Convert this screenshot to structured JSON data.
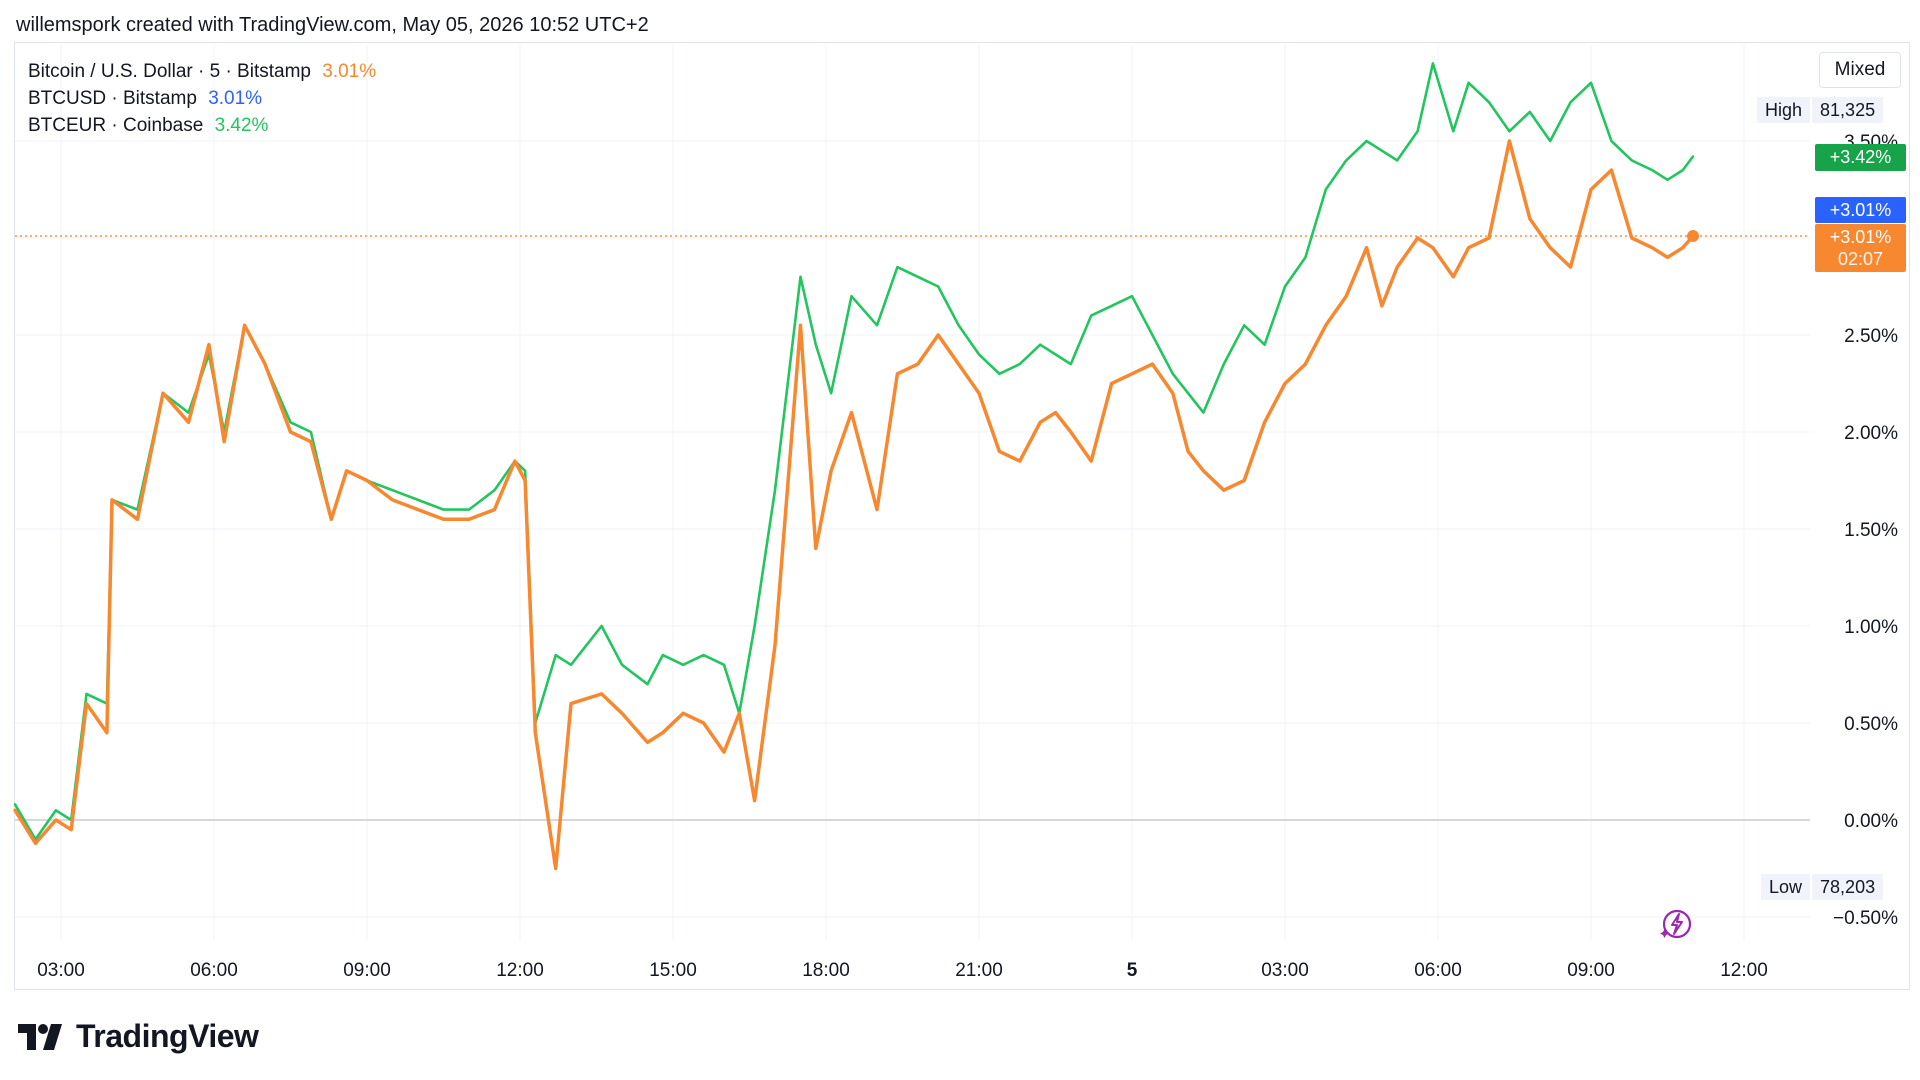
{
  "header": {
    "text": "willemspork created with TradingView.com, May 05, 2026 10:52 UTC+2"
  },
  "legend": [
    {
      "label": "Bitcoin / U.S. Dollar · 5 · Bitstamp",
      "value": "3.01%",
      "color": "#f7882f"
    },
    {
      "label": "BTCUSD · Bitstamp",
      "value": "3.01%",
      "color": "#2962ff"
    },
    {
      "label": "BTCEUR · Coinbase",
      "value": "3.42%",
      "color": "#22c55e"
    }
  ],
  "controls": {
    "mode_button": "Mixed"
  },
  "stats": {
    "high_label": "High",
    "high_value": "81,325",
    "low_label": "Low",
    "low_value": "78,203"
  },
  "badges": {
    "btceur": "+3.42%",
    "btcusd": "+3.01%",
    "main": "+3.01%",
    "countdown": "02:07"
  },
  "colors": {
    "btceur": "#22c55e",
    "btcusd": "#2962ff",
    "main": "#f7882f",
    "grid": "#f0f3fa",
    "axis_text": "#131722"
  },
  "footer": {
    "brand": "TradingView"
  },
  "icons": {
    "bolt": "lightning-icon"
  },
  "chart_data": {
    "type": "line",
    "y_unit": "%",
    "ylim": [
      -0.6,
      3.7
    ],
    "xlim": [
      -0.3,
      34.3
    ],
    "y_ticks": [
      "3.50%",
      "2.50%",
      "2.00%",
      "1.50%",
      "1.00%",
      "0.50%",
      "0.00%",
      "−0.50%"
    ],
    "y_tick_values": [
      3.5,
      2.5,
      2.0,
      1.5,
      1.0,
      0.5,
      0.0,
      -0.5
    ],
    "x_ticks": [
      "03:00",
      "06:00",
      "09:00",
      "12:00",
      "15:00",
      "18:00",
      "21:00",
      "5",
      "03:00",
      "06:00",
      "09:00",
      "12:00"
    ],
    "x_tick_hours": [
      3,
      6,
      9,
      12,
      15,
      18,
      21,
      24,
      27,
      30,
      33,
      36
    ],
    "grid": true,
    "series": [
      {
        "name": "BTCEUR · Coinbase",
        "color": "#22c55e",
        "x": [
          2.1,
          2.5,
          2.9,
          3.2,
          3.5,
          3.9,
          4.0,
          4.5,
          5.0,
          5.5,
          5.9,
          6.2,
          6.6,
          7.0,
          7.5,
          7.9,
          8.3,
          8.6,
          9.0,
          9.5,
          10.0,
          10.5,
          11.0,
          11.5,
          11.9,
          12.1,
          12.3,
          12.7,
          13.0,
          13.6,
          14.0,
          14.5,
          14.8,
          15.2,
          15.6,
          16.0,
          16.3,
          16.6,
          17.0,
          17.5,
          17.8,
          18.1,
          18.5,
          19.0,
          19.4,
          19.8,
          20.2,
          20.6,
          21.0,
          21.4,
          21.8,
          22.2,
          22.5,
          22.8,
          23.2,
          23.6,
          24.0,
          24.4,
          24.8,
          25.1,
          25.4,
          25.8,
          26.2,
          26.6,
          27.0,
          27.4,
          27.8,
          28.2,
          28.6,
          28.9,
          29.2,
          29.6,
          29.9,
          30.3,
          30.6,
          31.0,
          31.4,
          31.8,
          32.2,
          32.6,
          33.0,
          33.4,
          33.8,
          34.2,
          34.5,
          34.8,
          35.0
        ],
        "values": [
          0.08,
          -0.1,
          0.05,
          0.0,
          0.65,
          0.6,
          1.65,
          1.6,
          2.2,
          2.1,
          2.4,
          2.0,
          2.55,
          2.35,
          2.05,
          2.0,
          1.55,
          1.8,
          1.75,
          1.7,
          1.65,
          1.6,
          1.6,
          1.7,
          1.85,
          1.8,
          0.5,
          0.85,
          0.8,
          1.0,
          0.8,
          0.7,
          0.85,
          0.8,
          0.85,
          0.8,
          0.55,
          1.0,
          1.7,
          2.8,
          2.45,
          2.2,
          2.7,
          2.55,
          2.85,
          2.8,
          2.75,
          2.55,
          2.4,
          2.3,
          2.35,
          2.45,
          2.4,
          2.35,
          2.6,
          2.65,
          2.7,
          2.5,
          2.3,
          2.2,
          2.1,
          2.35,
          2.55,
          2.45,
          2.75,
          2.9,
          3.25,
          3.4,
          3.5,
          3.45,
          3.4,
          3.55,
          3.9,
          3.55,
          3.8,
          3.7,
          3.55,
          3.65,
          3.5,
          3.7,
          3.8,
          3.5,
          3.4,
          3.35,
          3.3,
          3.35,
          3.42
        ]
      },
      {
        "name": "BTCUSD · Bitstamp",
        "color": "#f7882f",
        "x": [
          2.1,
          2.5,
          2.9,
          3.2,
          3.5,
          3.9,
          4.0,
          4.5,
          5.0,
          5.5,
          5.9,
          6.2,
          6.6,
          7.0,
          7.5,
          7.9,
          8.3,
          8.6,
          9.0,
          9.5,
          10.0,
          10.5,
          11.0,
          11.5,
          11.9,
          12.1,
          12.3,
          12.7,
          13.0,
          13.6,
          14.0,
          14.5,
          14.8,
          15.2,
          15.6,
          16.0,
          16.3,
          16.6,
          17.0,
          17.5,
          17.8,
          18.1,
          18.5,
          19.0,
          19.4,
          19.8,
          20.2,
          20.6,
          21.0,
          21.4,
          21.8,
          22.2,
          22.5,
          22.8,
          23.2,
          23.6,
          24.0,
          24.4,
          24.8,
          25.1,
          25.4,
          25.8,
          26.2,
          26.6,
          27.0,
          27.4,
          27.8,
          28.2,
          28.6,
          28.9,
          29.2,
          29.6,
          29.9,
          30.3,
          30.6,
          31.0,
          31.4,
          31.8,
          32.2,
          32.6,
          33.0,
          33.4,
          33.8,
          34.2,
          34.5,
          34.8,
          35.0
        ],
        "values": [
          0.05,
          -0.12,
          0.0,
          -0.05,
          0.6,
          0.45,
          1.65,
          1.55,
          2.2,
          2.05,
          2.45,
          1.95,
          2.55,
          2.35,
          2.0,
          1.95,
          1.55,
          1.8,
          1.75,
          1.65,
          1.6,
          1.55,
          1.55,
          1.6,
          1.85,
          1.75,
          0.45,
          -0.25,
          0.6,
          0.65,
          0.55,
          0.4,
          0.45,
          0.55,
          0.5,
          0.35,
          0.55,
          0.1,
          0.9,
          2.55,
          1.4,
          1.8,
          2.1,
          1.6,
          2.3,
          2.35,
          2.5,
          2.35,
          2.2,
          1.9,
          1.85,
          2.05,
          2.1,
          2.0,
          1.85,
          2.25,
          2.3,
          2.35,
          2.2,
          1.9,
          1.8,
          1.7,
          1.75,
          2.05,
          2.25,
          2.35,
          2.55,
          2.7,
          2.95,
          2.65,
          2.85,
          3.0,
          2.95,
          2.8,
          2.95,
          3.0,
          3.5,
          3.1,
          2.95,
          2.85,
          3.25,
          3.35,
          3.0,
          2.95,
          2.9,
          2.95,
          3.01
        ]
      }
    ]
  }
}
